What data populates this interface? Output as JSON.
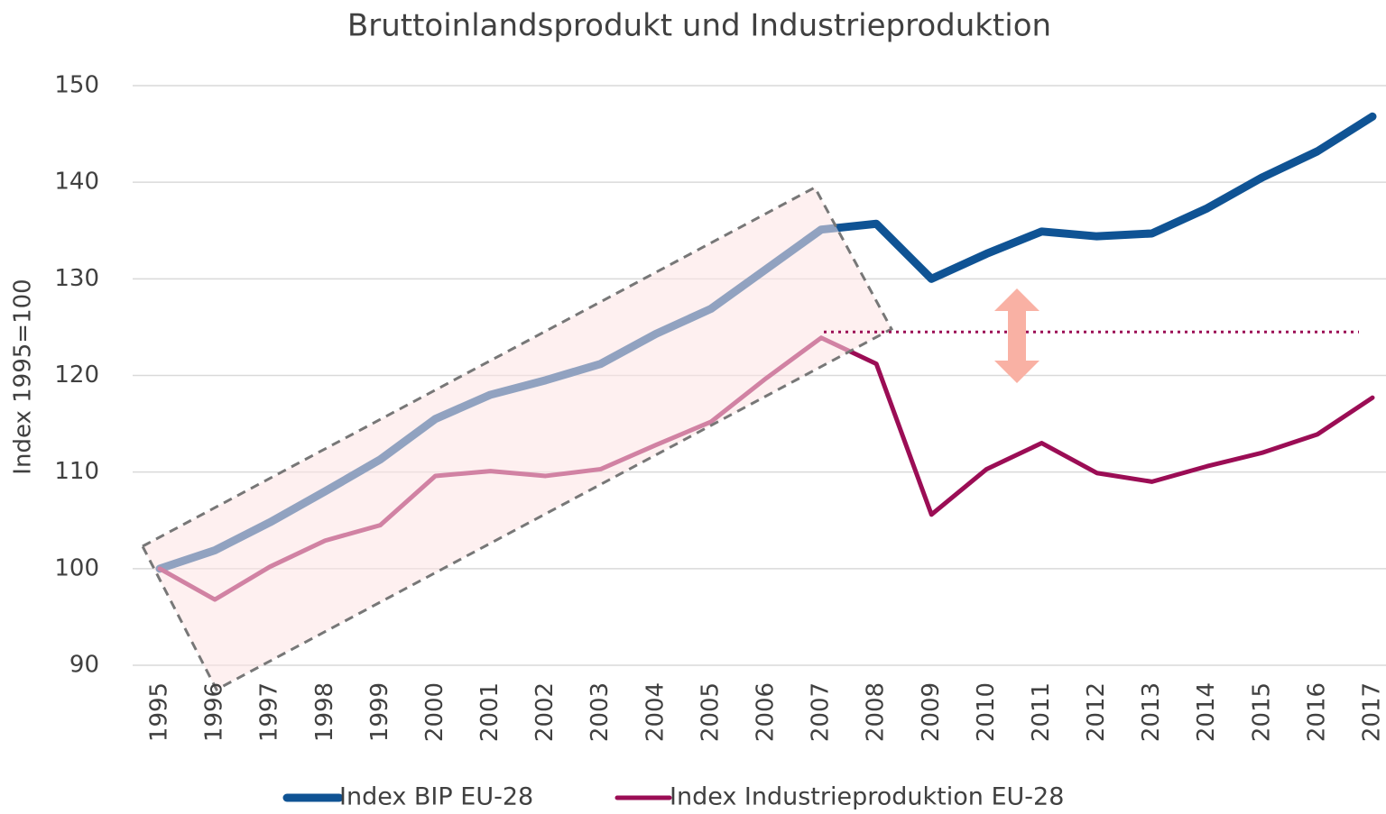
{
  "chart_data": {
    "type": "line",
    "title": "Bruttoinlandsprodukt und Industrieproduktion",
    "y_label": "Index 1995=100",
    "categories": [
      "1995",
      "1996",
      "1997",
      "1998",
      "1999",
      "2000",
      "2001",
      "2002",
      "2003",
      "2004",
      "2005",
      "2006",
      "2007",
      "2008",
      "2009",
      "2010",
      "2011",
      "2012",
      "2013",
      "2014",
      "2015",
      "2016",
      "2017"
    ],
    "series": [
      {
        "name": "Index BIP EU-28",
        "color": "#0f5394",
        "values": [
          100,
          101.9,
          104.8,
          108,
          111.3,
          115.5,
          118,
          119.5,
          121.2,
          124.3,
          126.9,
          131,
          135.1,
          135.7,
          130,
          132.6,
          134.9,
          134.4,
          134.7,
          137.3,
          140.5,
          143.2,
          146.8
        ]
      },
      {
        "name": "Index Industrieproduktion EU-28",
        "color": "#9b0d55",
        "values": [
          100,
          96.8,
          100.2,
          102.9,
          104.5,
          109.6,
          110.1,
          109.6,
          110.3,
          112.8,
          115.2,
          119.7,
          123.9,
          121.2,
          105.6,
          110.3,
          113,
          109.9,
          109,
          110.6,
          112,
          113.9,
          117.7
        ]
      }
    ],
    "reference_value": 124.5,
    "ylim": [
      90,
      150
    ],
    "yticks": [
      90,
      100,
      110,
      120,
      130,
      140,
      150
    ],
    "grid": true,
    "legend": "bottom"
  }
}
